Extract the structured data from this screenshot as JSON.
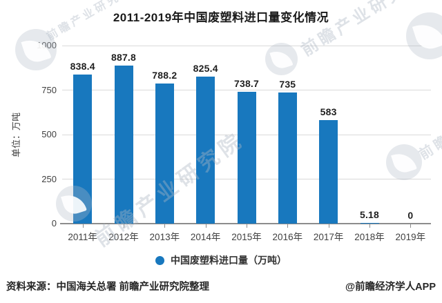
{
  "chart_data": {
    "type": "bar",
    "title": "2011-2019年中国废塑料进口量变化情况",
    "categories": [
      "2011年",
      "2012年",
      "2013年",
      "2014年",
      "2015年",
      "2016年",
      "2017年",
      "2018年",
      "2019年"
    ],
    "values": [
      838.4,
      887.8,
      788.2,
      825.4,
      738.7,
      735,
      583,
      5.18,
      0
    ],
    "ylabel": "单位：万吨",
    "ylim": [
      0,
      1000
    ],
    "yticks": [
      0,
      250,
      500,
      750,
      1000
    ],
    "grid": true,
    "legend": [
      "中国废塑料进口量（万吨）"
    ],
    "legend_position": "bottom",
    "bar_color": "#1878BE",
    "gridline_color": "#D9D9D9",
    "axis_color": "#8C8C8C",
    "tick_label_color": "#404040",
    "value_label_color": "#1F1F1F"
  },
  "footer": {
    "source": "资料来源：中国海关总署 前瞻产业研究院整理",
    "credit": "@前瞻经济学人APP"
  },
  "watermark": {
    "brand": "前瞻产业研究院"
  }
}
